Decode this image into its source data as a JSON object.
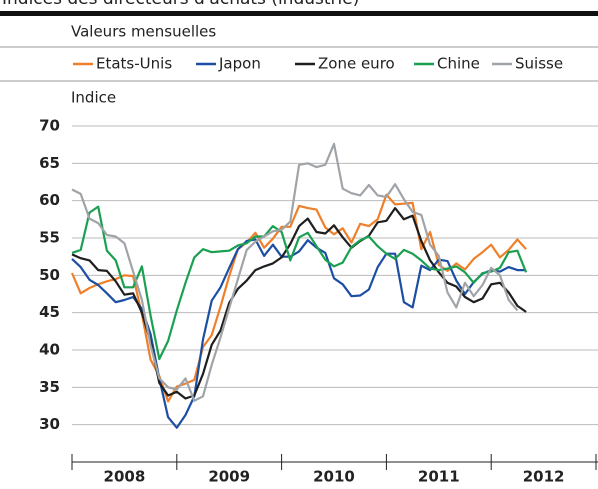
{
  "chart_data": {
    "type": "line",
    "title": "Indices des directeurs d'achats (industrie)",
    "subtitle": "Valeurs mensuelles",
    "y_label": "Indice",
    "x": [
      2008.0,
      2008.083,
      2008.167,
      2008.25,
      2008.333,
      2008.417,
      2008.5,
      2008.583,
      2008.667,
      2008.75,
      2008.833,
      2008.917,
      2009.0,
      2009.083,
      2009.167,
      2009.25,
      2009.333,
      2009.417,
      2009.5,
      2009.583,
      2009.667,
      2009.75,
      2009.833,
      2009.917,
      2010.0,
      2010.083,
      2010.167,
      2010.25,
      2010.333,
      2010.417,
      2010.5,
      2010.583,
      2010.667,
      2010.75,
      2010.833,
      2010.917,
      2011.0,
      2011.083,
      2011.167,
      2011.25,
      2011.333,
      2011.417,
      2011.5,
      2011.583,
      2011.667,
      2011.75,
      2011.833,
      2011.917,
      2012.0,
      2012.083,
      2012.167,
      2012.25,
      2012.333
    ],
    "series": [
      {
        "name": "Etats-Unis",
        "color": "#f07f2a",
        "values": [
          50.3,
          47.6,
          48.3,
          48.8,
          49.2,
          49.5,
          50,
          49.9,
          44.8,
          38.7,
          36.5,
          33.1,
          35.1,
          35.5,
          36.0,
          40.4,
          42.0,
          45.8,
          49.9,
          53.5,
          54.4,
          55.7,
          53.7,
          54.9,
          56.5,
          56.5,
          59.3,
          59.0,
          58.8,
          56.4,
          55.5,
          56.3,
          54.4,
          56.9,
          56.6,
          57.5,
          60.8,
          59.5,
          59.6,
          59.7,
          53.5,
          55.8,
          51.4,
          50.6,
          51.6,
          50.8,
          52.2,
          53.1,
          54.1,
          52.4,
          53.4,
          54.8,
          53.5
        ]
      },
      {
        "name": "Japon",
        "color": "#1c4ea3",
        "values": [
          52.2,
          51.1,
          49.4,
          48.7,
          47.6,
          46.4,
          46.7,
          47.1,
          45.5,
          42.1,
          36.2,
          31,
          29.6,
          31.3,
          33.8,
          41.4,
          46.6,
          48.4,
          51.0,
          53.5,
          54.6,
          54.8,
          52.6,
          54.1,
          52.5,
          52.5,
          53.2,
          54.7,
          53.7,
          53.0,
          49.6,
          48.8,
          47.2,
          47.3,
          48.1,
          51.1,
          52.9,
          52.9,
          46.4,
          45.7,
          51.3,
          50.7,
          52.1,
          51.9,
          49.3,
          47.5,
          49.1,
          50.2,
          50.7,
          50.5,
          51.1,
          50.7,
          50.7
        ]
      },
      {
        "name": "Zone euro",
        "color": "#1e1e1e",
        "values": [
          52.8,
          52.3,
          52.0,
          50.7,
          50.6,
          49.2,
          47.4,
          47.6,
          45.0,
          41.1,
          35.6,
          33.9,
          34.4,
          33.5,
          33.9,
          36.8,
          40.7,
          42.6,
          46.3,
          48.2,
          49.3,
          50.7,
          51.2,
          51.6,
          52.4,
          54.2,
          56.6,
          57.6,
          55.8,
          55.6,
          56.7,
          55.1,
          53.7,
          54.6,
          55.3,
          57.1,
          57.3,
          59.0,
          57.5,
          58.0,
          54.6,
          52.0,
          50.4,
          49.0,
          48.5,
          47.1,
          46.4,
          46.9,
          48.8,
          49.0,
          47.7,
          45.9,
          45.1
        ]
      },
      {
        "name": "Chine",
        "color": "#1aa050",
        "values": [
          53.0,
          53.4,
          58.4,
          59.2,
          53.3,
          52.0,
          48.4,
          48.4,
          51.2,
          44.6,
          38.8,
          41.2,
          45.3,
          49.0,
          52.4,
          53.5,
          53.1,
          53.2,
          53.3,
          54.0,
          54.3,
          55.2,
          55.2,
          56.6,
          55.8,
          52.0,
          55.1,
          55.7,
          53.9,
          52.1,
          51.2,
          51.7,
          53.8,
          54.7,
          55.2,
          53.9,
          52.9,
          52.2,
          53.4,
          52.9,
          52.0,
          50.9,
          50.7,
          50.9,
          51.2,
          50.4,
          49.0,
          50.3,
          50.5,
          51.0,
          53.1,
          53.3,
          50.4
        ]
      },
      {
        "name": "Suisse",
        "color": "#a0a4a8",
        "values": [
          61.5,
          60.9,
          57.6,
          57.0,
          55.4,
          55.2,
          54.3,
          50.5,
          46.7,
          40.6,
          36.2,
          35.0,
          34.7,
          36.2,
          33.2,
          33.8,
          38.0,
          41.7,
          45.6,
          49.5,
          53.4,
          54.5,
          55.2,
          55.9,
          56.1,
          57.2,
          64.8,
          65.0,
          64.5,
          64.8,
          67.6,
          61.6,
          61.0,
          60.7,
          62.1,
          60.7,
          60.5,
          62.2,
          60.2,
          58.5,
          58.1,
          54.1,
          52.6,
          47.7,
          45.7,
          49.0,
          47.2,
          48.7,
          51.0,
          50.0,
          46.7,
          45.3,
          null
        ]
      }
    ],
    "xlim": [
      2008,
      2013
    ],
    "xticks": [
      {
        "value": 2008.5,
        "label": "2008"
      },
      {
        "value": 2009.5,
        "label": "2009"
      },
      {
        "value": 2010.5,
        "label": "2010"
      },
      {
        "value": 2011.5,
        "label": "2011"
      },
      {
        "value": 2012.5,
        "label": "2012"
      }
    ],
    "ylim": [
      25,
      70
    ],
    "yticks": [
      30,
      35,
      40,
      45,
      50,
      55,
      60,
      65,
      70
    ],
    "grid": true
  }
}
